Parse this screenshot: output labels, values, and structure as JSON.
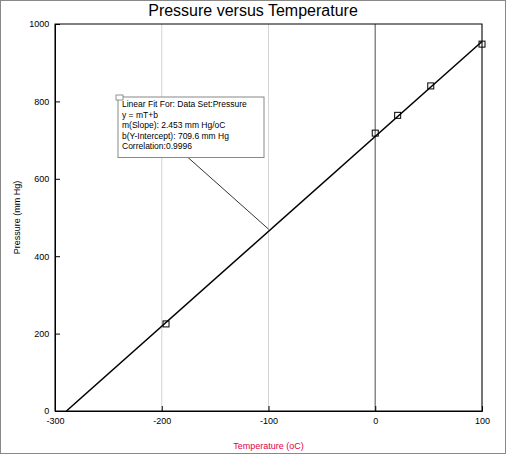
{
  "chart_data": {
    "type": "scatter",
    "title": "Pressure versus Temperature",
    "x_label": "Temperature (oC)",
    "y_label": "Pressure (mm Hg)",
    "xlim": [
      -300,
      100
    ],
    "xticks": [
      -300,
      -200,
      -100,
      0,
      100
    ],
    "ylim": [
      0,
      1000
    ],
    "yticks": [
      0,
      200,
      400,
      600,
      800,
      1000
    ],
    "grid": "x",
    "series": [
      {
        "type": "scatter",
        "marker": "square",
        "color": "#000000",
        "x": [
          -196,
          0,
          21,
          52,
          100
        ],
        "values": [
          225,
          718,
          764,
          840,
          948
        ]
      },
      {
        "type": "line",
        "line_style": "solid",
        "color": "#000000",
        "x": [
          -289.3,
          100
        ],
        "values": [
          0,
          954.9
        ]
      }
    ],
    "annotations": [
      {
        "text": [
          "Linear Fit For:  Data Set:Pressure",
          "y = mT+b",
          "m(Slope): 2.453 mm Hg/oC",
          "b(Y-Intercept): 709.6 mm Hg",
          "Correlation:0.9996"
        ]
      }
    ]
  }
}
